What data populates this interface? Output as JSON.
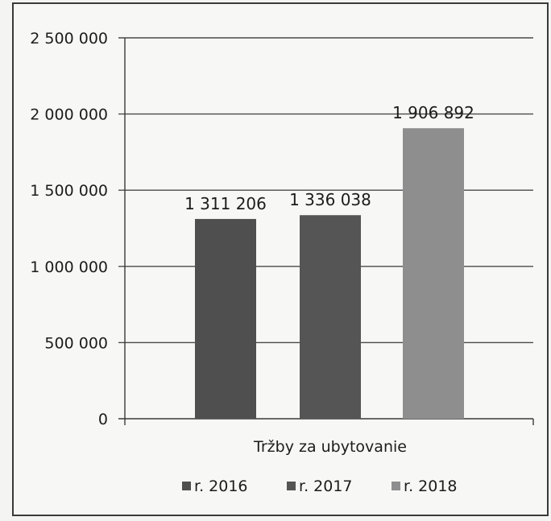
{
  "chart_data": {
    "type": "bar",
    "title": "",
    "xlabel": "",
    "ylabel": "",
    "category": "Tržby za ubytovanie",
    "series": [
      {
        "name": "r. 2016",
        "value": 1311206,
        "value_label": "1 311 206",
        "color": "#4f4f4f"
      },
      {
        "name": "r. 2017",
        "value": 1336038,
        "value_label": "1 336 038",
        "color": "#555555"
      },
      {
        "name": "r. 2018",
        "value": 1906892,
        "value_label": "1 906 892",
        "color": "#8e8e8e"
      }
    ],
    "ylim": [
      0,
      2500000
    ],
    "yticks": [
      {
        "value": 0,
        "label": "0"
      },
      {
        "value": 500000,
        "label": "500 000"
      },
      {
        "value": 1000000,
        "label": "1 000 000"
      },
      {
        "value": 1500000,
        "label": "1 500 000"
      },
      {
        "value": 2000000,
        "label": "2 000 000"
      },
      {
        "value": 2500000,
        "label": "2 500 000"
      }
    ],
    "grid": true,
    "legend_position": "bottom"
  }
}
